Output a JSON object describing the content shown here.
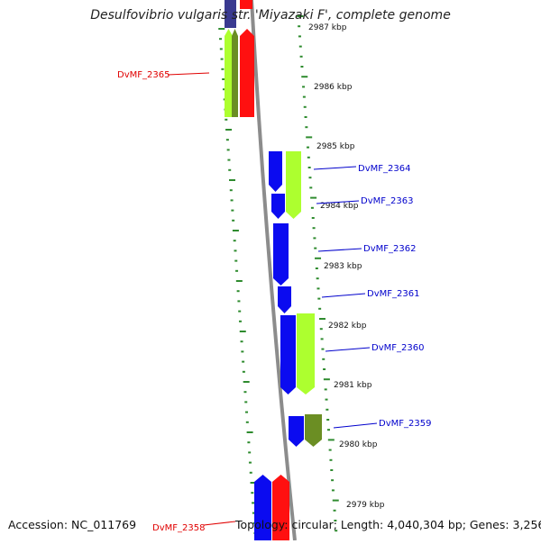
{
  "title": "Desulfovibrio vulgaris str. 'Miyazaki F', complete genome",
  "accession": "Accession: NC_011769",
  "summary": "Topology: circular; Length: 4,040,304 bp; Genes: 3,256",
  "colors": {
    "backbone": "#8c8c8c",
    "tick": "#2e8b2e",
    "cds_blue": "#0b0bf0",
    "cds_red": "#ff1010",
    "cds_lime": "#adff2f",
    "cds_olive": "#6b8e23",
    "cds_navy": "#3a3a90",
    "label_blue": "#0000cc",
    "label_red": "#e00000"
  },
  "scale_labels": [
    "2987 kbp",
    "2986 kbp",
    "2985 kbp",
    "2984 kbp",
    "2983 kbp",
    "2982 kbp",
    "2981 kbp",
    "2980 kbp",
    "2979 kbp"
  ],
  "gene_labels": [
    "DvMF_2365",
    "DvMF_2364",
    "DvMF_2363",
    "DvMF_2362",
    "DvMF_2361",
    "DvMF_2360",
    "DvMF_2359",
    "DvMF_2358"
  ]
}
